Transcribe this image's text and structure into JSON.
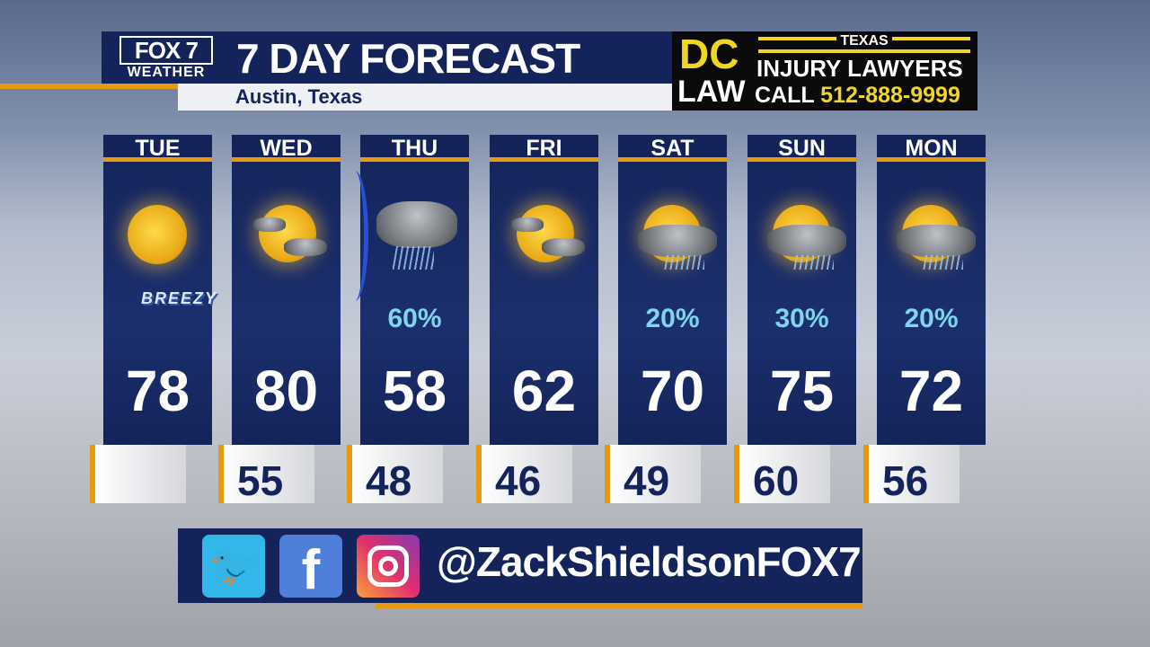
{
  "header": {
    "logo_top": "FOX 7",
    "logo_bottom": "WEATHER",
    "title": "7 DAY FORECAST",
    "location": "Austin, Texas"
  },
  "ad": {
    "brand_top": "DC",
    "brand_bottom": "LAW",
    "state": "TEXAS",
    "line1": "INJURY LAWYERS",
    "call_label": "CALL",
    "phone": "512-888-9999"
  },
  "colors": {
    "navy": "#14245a",
    "orange": "#e59a12",
    "precip": "#7fd6ec",
    "ad_yellow": "#f0d622"
  },
  "days": [
    {
      "day": "TUE",
      "icon": "sunny",
      "note": "BREEZY",
      "precip": "",
      "high": "78",
      "low": ""
    },
    {
      "day": "WED",
      "icon": "mostly-sunny",
      "precip": "",
      "high": "80",
      "low": "55"
    },
    {
      "day": "THU",
      "icon": "thunderstorms",
      "precip": "60%",
      "high": "58",
      "low": "48"
    },
    {
      "day": "FRI",
      "icon": "mostly-sunny",
      "precip": "",
      "high": "62",
      "low": "46"
    },
    {
      "day": "SAT",
      "icon": "partly-cloudy-showers",
      "precip": "20%",
      "high": "70",
      "low": "49"
    },
    {
      "day": "SUN",
      "icon": "partly-cloudy-showers",
      "precip": "30%",
      "high": "75",
      "low": "60"
    },
    {
      "day": "MON",
      "icon": "partly-cloudy-showers",
      "precip": "20%",
      "high": "72",
      "low": "56"
    }
  ],
  "social": {
    "handle": "@ZackShieldsonFOX7",
    "icons": [
      "twitter-icon",
      "facebook-icon",
      "instagram-icon"
    ]
  }
}
